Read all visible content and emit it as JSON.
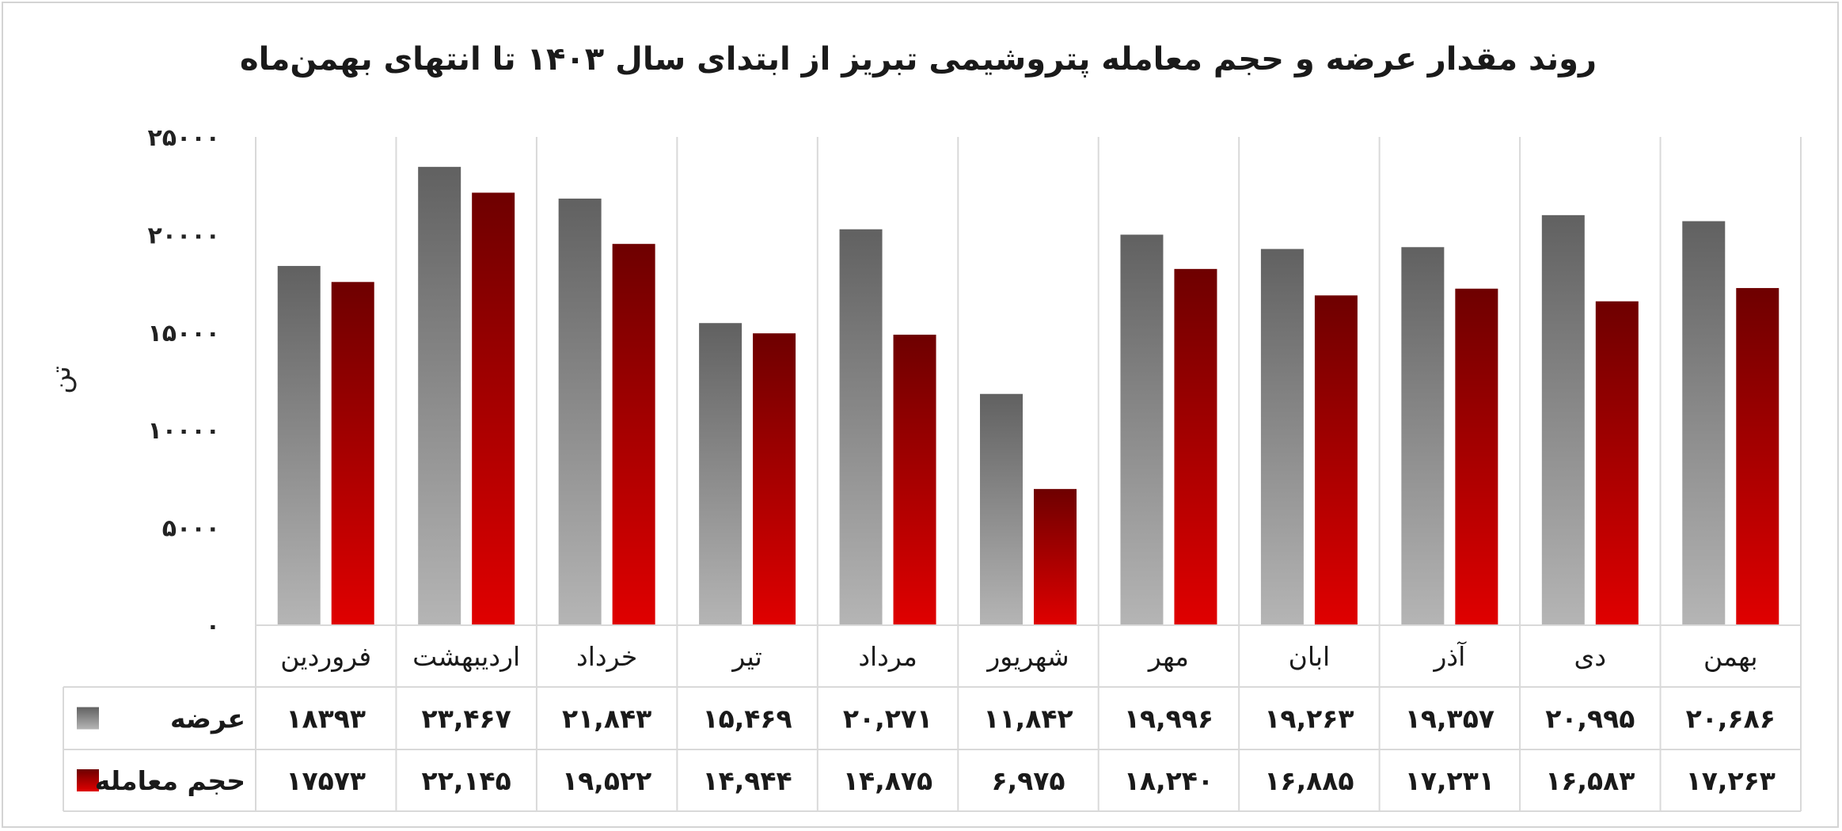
{
  "chart_data": {
    "type": "bar",
    "title": "روند مقدار عرضه و حجم معامله پتروشیمی تبریز از ابتدای سال ۱۴۰۳ تا انتهای بهمن‌ماه",
    "ylabel": "تن",
    "xlabel": "",
    "ylim": [
      0,
      25000
    ],
    "yticks": [
      0,
      5000,
      10000,
      15000,
      20000,
      25000
    ],
    "ytick_labels": [
      "۰",
      "۵۰۰۰",
      "۱۰۰۰۰",
      "۱۵۰۰۰",
      "۲۰۰۰۰",
      "۲۵۰۰۰"
    ],
    "grid": "vertical separators",
    "legend": "data table below chart",
    "categories": [
      "فروردین",
      "اردیبهشت",
      "خرداد",
      "تیر",
      "مرداد",
      "شهریور",
      "مهر",
      "ابان",
      "آذر",
      "دی",
      "بهمن"
    ],
    "series": [
      {
        "name": "عرضه",
        "color": "#8a8a8a",
        "values": [
          18393,
          23467,
          21843,
          15469,
          20271,
          11842,
          19996,
          19263,
          19357,
          20995,
          20686
        ],
        "labels": [
          "۱۸۳۹۳",
          "۲۳,۴۶۷",
          "۲۱,۸۴۳",
          "۱۵,۴۶۹",
          "۲۰,۲۷۱",
          "۱۱,۸۴۲",
          "۱۹,۹۹۶",
          "۱۹,۲۶۳",
          "۱۹,۳۵۷",
          "۲۰,۹۹۵",
          "۲۰,۶۸۶"
        ]
      },
      {
        "name": "حجم معامله",
        "color": "#c00000",
        "values": [
          17573,
          22145,
          19522,
          14944,
          14875,
          6975,
          18240,
          16885,
          17231,
          16583,
          17263
        ],
        "labels": [
          "۱۷۵۷۳",
          "۲۲,۱۴۵",
          "۱۹,۵۲۲",
          "۱۴,۹۴۴",
          "۱۴,۸۷۵",
          "۶,۹۷۵",
          "۱۸,۲۴۰",
          "۱۶,۸۸۵",
          "۱۷,۲۳۱",
          "۱۶,۵۸۳",
          "۱۷,۲۶۳"
        ]
      }
    ]
  }
}
